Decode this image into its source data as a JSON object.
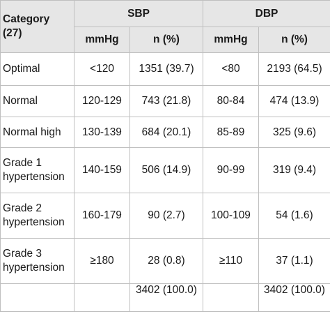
{
  "table": {
    "header": {
      "category": "Category (27)",
      "sbp": "SBP",
      "dbp": "DBP",
      "sbp_unit": "mmHg",
      "sbp_n": "n (%)",
      "dbp_unit": "mmHg",
      "dbp_n": "n (%)"
    },
    "rows": [
      {
        "category": "Optimal",
        "sbp_range": "<120",
        "sbp_n": "1351 (39.7)",
        "dbp_range": "<80",
        "dbp_n": "2193 (64.5)"
      },
      {
        "category": "Normal",
        "sbp_range": "120-129",
        "sbp_n": "743 (21.8)",
        "dbp_range": "80-84",
        "dbp_n": "474 (13.9)"
      },
      {
        "category": "Normal high",
        "sbp_range": "130-139",
        "sbp_n": "684 (20.1)",
        "dbp_range": "85-89",
        "dbp_n": "325 (9.6)"
      },
      {
        "category": "Grade 1 hypertension",
        "sbp_range": "140-159",
        "sbp_n": "506 (14.9)",
        "dbp_range": "90-99",
        "dbp_n": "319 (9.4)"
      },
      {
        "category": "Grade 2 hypertension",
        "sbp_range": "160-179",
        "sbp_n": "90 (2.7)",
        "dbp_range": "100-109",
        "dbp_n": "54 (1.6)"
      },
      {
        "category": "Grade 3 hypertension",
        "sbp_range": "≥180",
        "sbp_n": "28 (0.8)",
        "dbp_range": "≥110",
        "dbp_n": "37 (1.1)"
      }
    ],
    "total": {
      "category": "",
      "sbp_range": "",
      "sbp_n": "3402 (100.0)",
      "dbp_range": "",
      "dbp_n": "3402 (100.0)"
    }
  }
}
